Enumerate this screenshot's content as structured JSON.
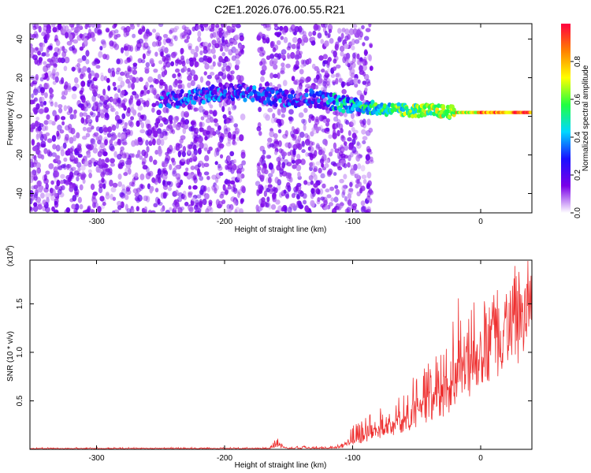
{
  "title": "C2E1.2026.076.00.55.R21",
  "chart_data": [
    {
      "type": "heatmap",
      "xlabel": "Height of straight line (km)",
      "ylabel": "Frequency (Hz)",
      "xlim": [
        -352,
        40
      ],
      "ylim": [
        -50,
        48
      ],
      "xticks": [
        -300,
        -200,
        -100,
        0
      ],
      "yticks": [
        -40,
        -20,
        0,
        20,
        40
      ],
      "colorbar": {
        "label": "Normalized spectral amplitude",
        "ticks": [
          0.0,
          0.2,
          0.4,
          0.6,
          0.8
        ],
        "range": [
          0,
          1
        ],
        "colormap": [
          "#ffffff",
          "#7a00e8",
          "#1a10ff",
          "#00d8ff",
          "#20ff40",
          "#ffff00",
          "#ff8000",
          "#ff0040"
        ]
      },
      "signal_ridge": {
        "x": [
          -250,
          -225,
          -210,
          -195,
          -180,
          -165,
          -150,
          -135,
          -120,
          -100,
          -80,
          -60,
          -40,
          -20,
          0,
          20,
          40
        ],
        "y": [
          8,
          10,
          12,
          13,
          12,
          10,
          9,
          10,
          8,
          6,
          4,
          3,
          3,
          2,
          2,
          2,
          2
        ]
      },
      "noise_floor_region": [
        -352,
        -110
      ]
    },
    {
      "type": "line",
      "xlabel": "Height of straight line (km)",
      "ylabel": "SNR (10 * v/v)",
      "multiplier": "(x10",
      "multiplier_exp": "4",
      "multiplier_close": ")",
      "xlim": [
        -352,
        40
      ],
      "ylim": [
        0,
        1.95
      ],
      "xticks": [
        -300,
        -200,
        -100,
        0
      ],
      "yticks": [
        0.5,
        1.0,
        1.5
      ],
      "series": [
        {
          "color": "#ee3030",
          "x": [
            -352,
            -300,
            -200,
            -165,
            -160,
            -150,
            -110,
            -100,
            -90,
            -80,
            -70,
            -60,
            -50,
            -40,
            -30,
            -20,
            -10,
            0,
            10,
            20,
            30,
            40
          ],
          "y": [
            0.01,
            0.01,
            0.01,
            0.01,
            0.05,
            0.01,
            0.02,
            0.1,
            0.15,
            0.22,
            0.28,
            0.35,
            0.45,
            0.55,
            0.65,
            0.85,
            1.0,
            1.25,
            1.45,
            1.6,
            1.7,
            1.75
          ],
          "peak_envelope": [
            0.02,
            0.02,
            0.02,
            0.02,
            0.12,
            0.03,
            0.05,
            0.25,
            0.4,
            0.55,
            0.5,
            0.6,
            0.8,
            1.0,
            1.3,
            1.5,
            1.55,
            1.7,
            1.9,
            1.8,
            1.78,
            1.8
          ]
        }
      ]
    }
  ]
}
